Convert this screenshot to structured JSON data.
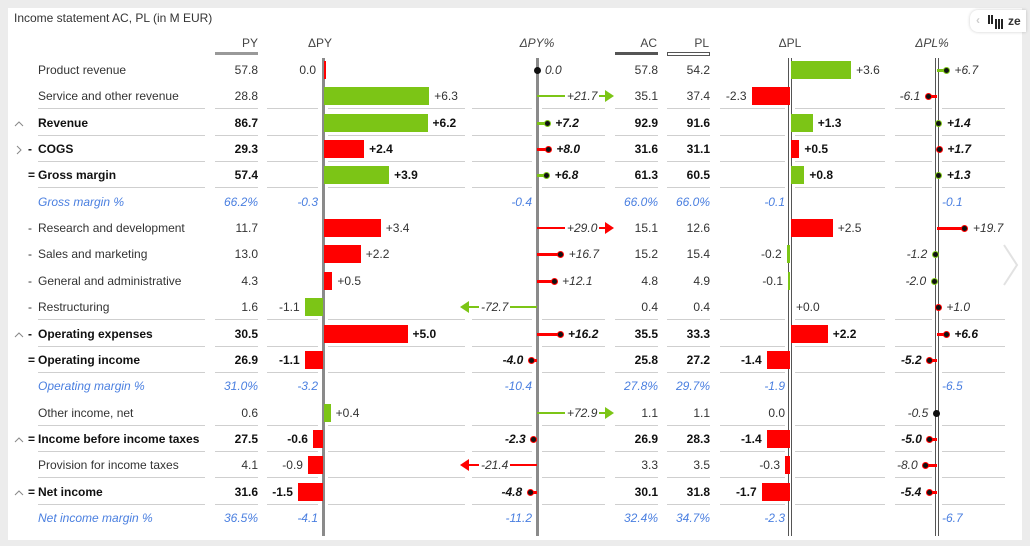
{
  "title": "Income statement AC, PL (in M EUR)",
  "toolbar": {
    "logo_text": "ze",
    "collapse_icon": "chevron-left-icon",
    "logo_icon": "zebra-bars-icon"
  },
  "headers": {
    "py": "PY",
    "dpy": "ΔPY",
    "dpyp": "ΔPY%",
    "ac": "AC",
    "pl": "PL",
    "dpl": "ΔPL",
    "dplp": "ΔPL%"
  },
  "colors": {
    "good": "#7cc516",
    "bad": "#ff0000",
    "margin": "#4a7fe0"
  },
  "scroll_right_icon": "chevron-right-icon",
  "rows": [
    {
      "label": "Product revenue",
      "prefix": "",
      "exp": "",
      "style": "normal",
      "line": false,
      "py": "57.8",
      "dpy": "0.0",
      "dpy_c": "r",
      "dpyp": "0.0",
      "dpyp_c": "n",
      "ac": "57.8",
      "pl": "54.2",
      "dpl": "+3.6",
      "dpl_c": "g",
      "dplp": "+6.7",
      "dplp_c": "g"
    },
    {
      "label": "Service and other revenue",
      "prefix": "",
      "exp": "",
      "style": "normal",
      "line": true,
      "py": "28.8",
      "dpy": "+6.3",
      "dpy_c": "g",
      "dpyp": "+21.7",
      "dpyp_c": "g",
      "ac": "35.1",
      "pl": "37.4",
      "dpl": "-2.3",
      "dpl_c": "r",
      "dplp": "-6.1",
      "dplp_c": "r"
    },
    {
      "label": "Revenue",
      "prefix": "",
      "exp": "up",
      "style": "bold",
      "line": true,
      "py": "86.7",
      "dpy": "+6.2",
      "dpy_c": "g",
      "dpyp": "+7.2",
      "dpyp_c": "g",
      "ac": "92.9",
      "pl": "91.6",
      "dpl": "+1.3",
      "dpl_c": "g",
      "dplp": "+1.4",
      "dplp_c": "g"
    },
    {
      "label": "COGS",
      "prefix": "-",
      "exp": "right",
      "style": "bold",
      "line": true,
      "py": "29.3",
      "dpy": "+2.4",
      "dpy_c": "r",
      "dpyp": "+8.0",
      "dpyp_c": "r",
      "ac": "31.6",
      "pl": "31.1",
      "dpl": "+0.5",
      "dpl_c": "r",
      "dplp": "+1.7",
      "dplp_c": "r"
    },
    {
      "label": "Gross margin",
      "prefix": "=",
      "exp": "",
      "style": "bold",
      "line": true,
      "py": "57.4",
      "dpy": "+3.9",
      "dpy_c": "g",
      "dpyp": "+6.8",
      "dpyp_c": "g",
      "ac": "61.3",
      "pl": "60.5",
      "dpl": "+0.8",
      "dpl_c": "g",
      "dplp": "+1.3",
      "dplp_c": "g"
    },
    {
      "label": "Gross margin %",
      "prefix": "",
      "exp": "",
      "style": "margin",
      "line": false,
      "py": "66.2%",
      "dpy": "-0.3",
      "dpy_c": "b",
      "dpyp": "-0.4",
      "dpyp_c": "b",
      "ac": "66.0%",
      "pl": "66.0%",
      "dpl": "-0.1",
      "dpl_c": "b",
      "dplp": "-0.1",
      "dplp_c": "b"
    },
    {
      "label": "Research and development",
      "prefix": "-",
      "exp": "",
      "style": "normal",
      "line": false,
      "py": "11.7",
      "dpy": "+3.4",
      "dpy_c": "r",
      "dpyp": "+29.0",
      "dpyp_c": "r",
      "ac": "15.1",
      "pl": "12.6",
      "dpl": "+2.5",
      "dpl_c": "r",
      "dplp": "+19.7",
      "dplp_c": "r"
    },
    {
      "label": "Sales and marketing",
      "prefix": "-",
      "exp": "",
      "style": "normal",
      "line": false,
      "py": "13.0",
      "dpy": "+2.2",
      "dpy_c": "r",
      "dpyp": "+16.7",
      "dpyp_c": "r",
      "ac": "15.2",
      "pl": "15.4",
      "dpl": "-0.2",
      "dpl_c": "g",
      "dplp": "-1.2",
      "dplp_c": "g"
    },
    {
      "label": "General and administrative",
      "prefix": "-",
      "exp": "",
      "style": "normal",
      "line": false,
      "py": "4.3",
      "dpy": "+0.5",
      "dpy_c": "r",
      "dpyp": "+12.1",
      "dpyp_c": "r",
      "ac": "4.8",
      "pl": "4.9",
      "dpl": "-0.1",
      "dpl_c": "g",
      "dplp": "-2.0",
      "dplp_c": "g"
    },
    {
      "label": "Restructuring",
      "prefix": "-",
      "exp": "",
      "style": "normal",
      "line": true,
      "py": "1.6",
      "dpy": "-1.1",
      "dpy_c": "g",
      "dpyp": "-72.7",
      "dpyp_c": "g",
      "ac": "0.4",
      "pl": "0.4",
      "dpl": "+0.0",
      "dpl_c": "n",
      "dplp": "+1.0",
      "dplp_c": "r"
    },
    {
      "label": "Operating expenses",
      "prefix": "-",
      "exp": "up",
      "style": "bold",
      "line": true,
      "py": "30.5",
      "dpy": "+5.0",
      "dpy_c": "r",
      "dpyp": "+16.2",
      "dpyp_c": "r",
      "ac": "35.5",
      "pl": "33.3",
      "dpl": "+2.2",
      "dpl_c": "r",
      "dplp": "+6.6",
      "dplp_c": "r"
    },
    {
      "label": "Operating income",
      "prefix": "=",
      "exp": "",
      "style": "bold",
      "line": true,
      "py": "26.9",
      "dpy": "-1.1",
      "dpy_c": "r",
      "dpyp": "-4.0",
      "dpyp_c": "r",
      "ac": "25.8",
      "pl": "27.2",
      "dpl": "-1.4",
      "dpl_c": "r",
      "dplp": "-5.2",
      "dplp_c": "r"
    },
    {
      "label": "Operating margin %",
      "prefix": "",
      "exp": "",
      "style": "margin",
      "line": false,
      "py": "31.0%",
      "dpy": "-3.2",
      "dpy_c": "b",
      "dpyp": "-10.4",
      "dpyp_c": "b",
      "ac": "27.8%",
      "pl": "29.7%",
      "dpl": "-1.9",
      "dpl_c": "b",
      "dplp": "-6.5",
      "dplp_c": "b"
    },
    {
      "label": "Other income, net",
      "prefix": "",
      "exp": "",
      "style": "normal",
      "line": true,
      "py": "0.6",
      "dpy": "+0.4",
      "dpy_c": "g",
      "dpyp": "+72.9",
      "dpyp_c": "g",
      "ac": "1.1",
      "pl": "1.1",
      "dpl": "0.0",
      "dpl_c": "n",
      "dplp": "-0.5",
      "dplp_c": "n"
    },
    {
      "label": "Income before income taxes",
      "prefix": "=",
      "exp": "up",
      "style": "bold",
      "line": true,
      "py": "27.5",
      "dpy": "-0.6",
      "dpy_c": "r",
      "dpyp": "-2.3",
      "dpyp_c": "r",
      "ac": "26.9",
      "pl": "28.3",
      "dpl": "-1.4",
      "dpl_c": "r",
      "dplp": "-5.0",
      "dplp_c": "r"
    },
    {
      "label": "Provision for income taxes",
      "prefix": "",
      "exp": "",
      "style": "normal",
      "line": true,
      "py": "4.1",
      "dpy": "-0.9",
      "dpy_c": "r",
      "dpyp": "-21.4",
      "dpyp_c": "r",
      "ac": "3.3",
      "pl": "3.5",
      "dpl": "-0.3",
      "dpl_c": "r",
      "dplp": "-8.0",
      "dplp_c": "r"
    },
    {
      "label": "Net income",
      "prefix": "=",
      "exp": "up",
      "style": "bold",
      "line": true,
      "py": "31.6",
      "dpy": "-1.5",
      "dpy_c": "r",
      "dpyp": "-4.8",
      "dpyp_c": "r",
      "ac": "30.1",
      "pl": "31.8",
      "dpl": "-1.7",
      "dpl_c": "r",
      "dplp": "-5.4",
      "dplp_c": "r"
    },
    {
      "label": "Net income margin %",
      "prefix": "",
      "exp": "",
      "style": "margin",
      "line": false,
      "py": "36.5%",
      "dpy": "-4.1",
      "dpy_c": "b",
      "dpyp": "-11.2",
      "dpyp_c": "b",
      "ac": "32.4%",
      "pl": "34.7%",
      "dpl": "-2.3",
      "dpl_c": "b",
      "dplp": "-6.7",
      "dplp_c": "b"
    }
  ]
}
